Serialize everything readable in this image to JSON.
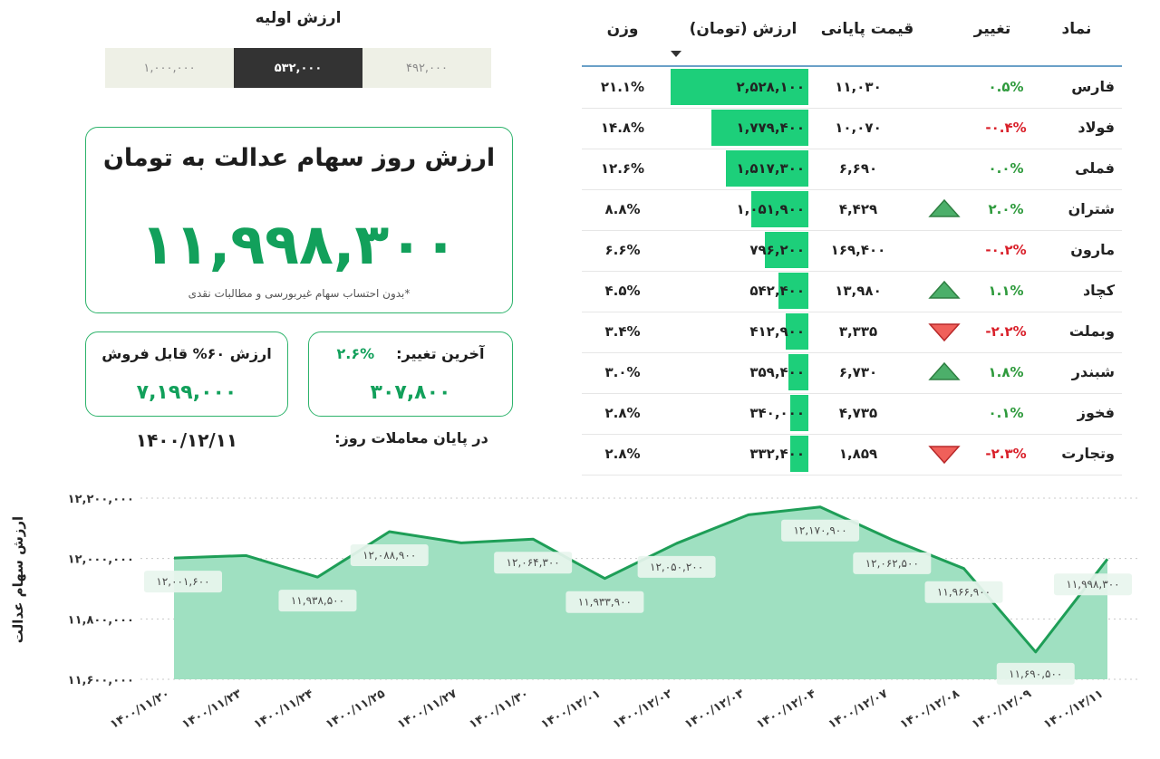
{
  "initial_value": {
    "title": "ارزش اولیه",
    "options": [
      "۴۹۲,۰۰۰",
      "۵۳۲,۰۰۰",
      "۱,۰۰۰,۰۰۰"
    ],
    "selected_index": 1
  },
  "summary": {
    "title": "ارزش روز سهام عدالت به تومان",
    "value": "۱۱,۹۹۸,۳۰۰",
    "note": "*بدون احتساب سهام غیربورسی و مطالبات نقدی",
    "sellable_title": "ارزش ۶۰% قابل فروش",
    "sellable_value": "۷,۱۹۹,۰۰۰",
    "last_change_label": "آخرین تغییر:",
    "last_change_pct": "۲.۶%",
    "last_change_value": "۳۰۷,۸۰۰",
    "date_label": "در پایان معاملات روز:",
    "date_value": "۱۴۰۰/۱۲/۱۱"
  },
  "table": {
    "headers": {
      "symbol": "نماد",
      "change": "تغییر",
      "final_price": "قیمت پایانی",
      "value": "ارزش (تومان)",
      "weight": "وزن"
    },
    "max_value": 2528100,
    "colors": {
      "bar": "#1dcf7a",
      "up": "#3fa34d",
      "down": "#e0413a",
      "pos_text": "#2e9a3c",
      "neg_text": "#d9202a"
    },
    "rows": [
      {
        "symbol": "فارس",
        "change": "۰.۵%",
        "dir": "pos",
        "arrow": "",
        "final": "۱۱,۰۳۰",
        "value_text": "۲,۵۲۸,۱۰۰",
        "value": 2528100,
        "weight": "۲۱.۱%"
      },
      {
        "symbol": "فولاد",
        "change": "-۰.۴%",
        "dir": "neg",
        "arrow": "",
        "final": "۱۰,۰۷۰",
        "value_text": "۱,۷۷۹,۴۰۰",
        "value": 1779400,
        "weight": "۱۴.۸%"
      },
      {
        "symbol": "فملی",
        "change": "۰.۰%",
        "dir": "pos",
        "arrow": "",
        "final": "۶,۶۹۰",
        "value_text": "۱,۵۱۷,۳۰۰",
        "value": 1517300,
        "weight": "۱۲.۶%"
      },
      {
        "symbol": "شتران",
        "change": "۲.۰%",
        "dir": "pos",
        "arrow": "up",
        "final": "۴,۴۲۹",
        "value_text": "۱,۰۵۱,۹۰۰",
        "value": 1051900,
        "weight": "۸.۸%"
      },
      {
        "symbol": "مارون",
        "change": "-۰.۲%",
        "dir": "neg",
        "arrow": "",
        "final": "۱۶۹,۴۰۰",
        "value_text": "۷۹۶,۲۰۰",
        "value": 796200,
        "weight": "۶.۶%"
      },
      {
        "symbol": "کچاد",
        "change": "۱.۱%",
        "dir": "pos",
        "arrow": "up",
        "final": "۱۳,۹۸۰",
        "value_text": "۵۴۲,۴۰۰",
        "value": 542400,
        "weight": "۴.۵%"
      },
      {
        "symbol": "وبملت",
        "change": "-۲.۲%",
        "dir": "neg",
        "arrow": "down",
        "final": "۳,۳۳۵",
        "value_text": "۴۱۲,۹۰۰",
        "value": 412900,
        "weight": "۳.۴%"
      },
      {
        "symbol": "شبندر",
        "change": "۱.۸%",
        "dir": "pos",
        "arrow": "up",
        "final": "۶,۷۳۰",
        "value_text": "۳۵۹,۴۰۰",
        "value": 359400,
        "weight": "۳.۰%"
      },
      {
        "symbol": "فخوز",
        "change": "۰.۱%",
        "dir": "pos",
        "arrow": "",
        "final": "۴,۷۳۵",
        "value_text": "۳۴۰,۰۰۰",
        "value": 340000,
        "weight": "۲.۸%"
      },
      {
        "symbol": "وتجارت",
        "change": "-۲.۳%",
        "dir": "neg",
        "arrow": "down",
        "final": "۱,۸۵۹",
        "value_text": "۳۳۲,۴۰۰",
        "value": 332400,
        "weight": "۲.۸%"
      }
    ]
  },
  "chart_data": {
    "type": "area",
    "ylabel": "ارزش سهام عدالت",
    "xlabel": "",
    "title": "",
    "ylim": [
      11600000,
      12200000
    ],
    "y_ticks": [
      11600000,
      11800000,
      12000000,
      12200000
    ],
    "y_tick_labels": [
      "۱۱,۶۰۰,۰۰۰",
      "۱۱,۸۰۰,۰۰۰",
      "۱۲,۰۰۰,۰۰۰",
      "۱۲,۲۰۰,۰۰۰"
    ],
    "grid": true,
    "colors": {
      "line": "#1e9e57",
      "fill": "#9fe0c1",
      "label_bg": "#e8f5ee",
      "label_text": "#4a4a4a"
    },
    "x": [
      "۱۴۰۰/۱۱/۲۰",
      "۱۴۰۰/۱۱/۲۳",
      "۱۴۰۰/۱۱/۲۴",
      "۱۴۰۰/۱۱/۲۵",
      "۱۴۰۰/۱۱/۲۷",
      "۱۴۰۰/۱۱/۳۰",
      "۱۴۰۰/۱۲/۰۱",
      "۱۴۰۰/۱۲/۰۲",
      "۱۴۰۰/۱۲/۰۳",
      "۱۴۰۰/۱۲/۰۴",
      "۱۴۰۰/۱۲/۰۷",
      "۱۴۰۰/۱۲/۰۸",
      "۱۴۰۰/۱۲/۰۹",
      "۱۴۰۰/۱۲/۱۱"
    ],
    "values": [
      12001600,
      12010000,
      11938500,
      12088900,
      12052000,
      12064300,
      11933900,
      12050200,
      12145000,
      12170900,
      12062500,
      11966900,
      11690500,
      11998300
    ],
    "point_labels": [
      "۱۲,۰۰۱,۶۰۰",
      "",
      "۱۱,۹۳۸,۵۰۰",
      "۱۲,۰۸۸,۹۰۰",
      "",
      "۱۲,۰۶۴,۳۰۰",
      "۱۱,۹۳۳,۹۰۰",
      "۱۲,۰۵۰,۲۰۰",
      "",
      "۱۲,۱۷۰,۹۰۰",
      "۱۲,۰۶۲,۵۰۰",
      "۱۱,۹۶۶,۹۰۰",
      "۱۱,۶۹۰,۵۰۰",
      "۱۱,۹۹۸,۳۰۰"
    ]
  }
}
